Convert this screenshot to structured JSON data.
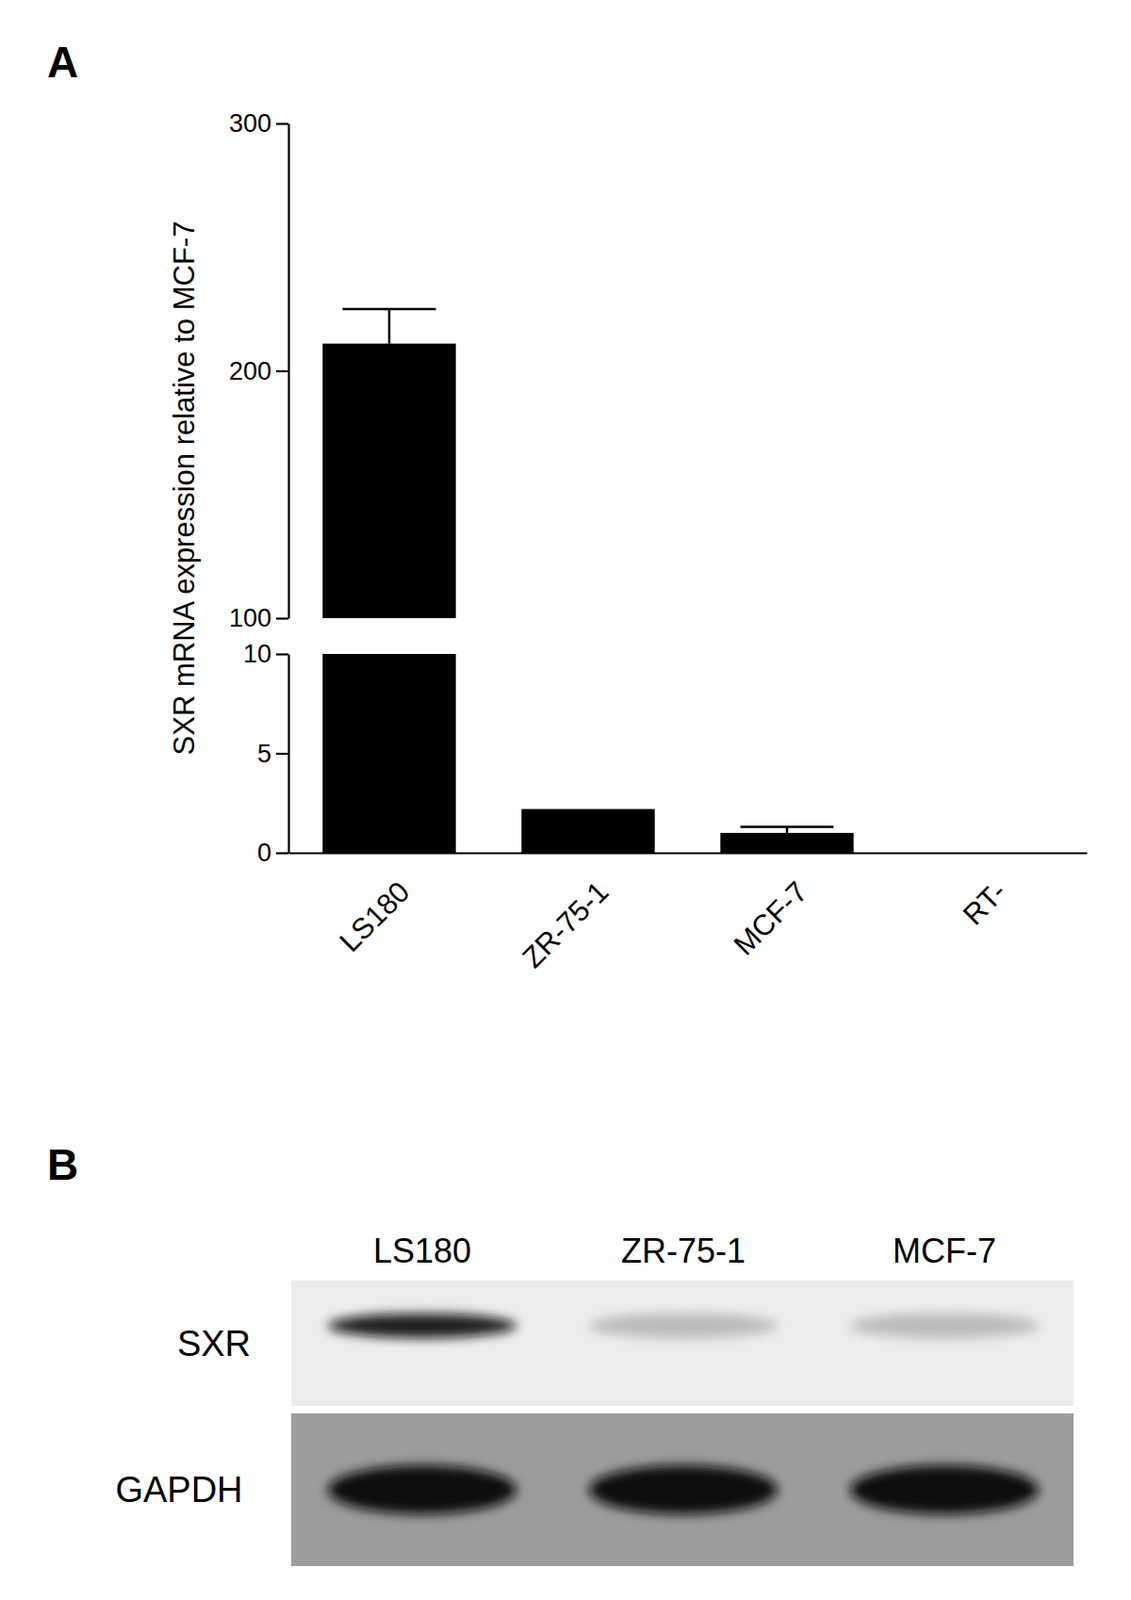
{
  "chart_data": {
    "type": "bar",
    "panel_label": "A",
    "y_label": "SXR mRNA expression relative to MCF-7",
    "categories": [
      "LS180",
      "ZR-75-1",
      "MCF-7",
      "RT-"
    ],
    "values": [
      211,
      2.2,
      1.0,
      0
    ],
    "errors": [
      14,
      null,
      0.3,
      null
    ],
    "color": "#000000",
    "ylim": [
      0,
      300
    ],
    "ybreak": [
      10,
      100
    ],
    "yticks": [
      0,
      5,
      10,
      100,
      200,
      300
    ]
  },
  "blot": {
    "panel_label": "B",
    "lanes": [
      "LS180",
      "ZR-75-1",
      "MCF-7"
    ],
    "rows": [
      "SXR",
      "GAPDH"
    ]
  }
}
